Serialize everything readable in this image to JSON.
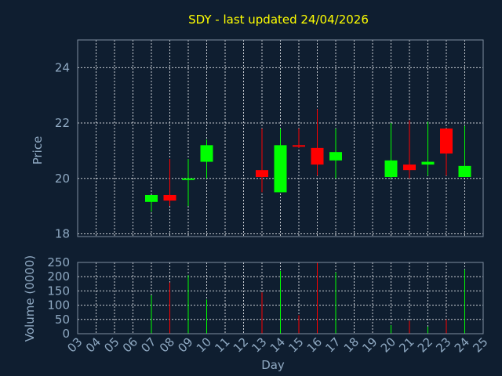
{
  "chart_data": {
    "type": "candlestick",
    "title": "SDY - last updated 24/04/2026",
    "price_panel": {
      "ylabel": "Price",
      "ylim": [
        17.9,
        25.0
      ],
      "yticks": [
        18,
        20,
        22,
        24
      ]
    },
    "volume_panel": {
      "ylabel": "Volume (0000)",
      "ylim": [
        0,
        250
      ],
      "yticks": [
        0,
        50,
        100,
        150,
        200,
        250
      ]
    },
    "xlabel": "Day",
    "xlim": [
      3,
      25
    ],
    "xticks": [
      "03",
      "04",
      "05",
      "06",
      "07",
      "08",
      "09",
      "10",
      "11",
      "12",
      "13",
      "14",
      "15",
      "16",
      "17",
      "18",
      "19",
      "20",
      "21",
      "22",
      "23",
      "24",
      "25"
    ],
    "colors": {
      "up": "#00ff00",
      "down": "#ff0000",
      "title": "#ffff00",
      "axis": "#8fa9c2",
      "background": "#0f1e30"
    },
    "candles": [
      {
        "day": 7,
        "open": 19.15,
        "high": 19.4,
        "low": 18.8,
        "close": 19.4,
        "volume": 135
      },
      {
        "day": 8,
        "open": 19.4,
        "high": 20.7,
        "low": 19.0,
        "close": 19.2,
        "volume": 180
      },
      {
        "day": 9,
        "open": 19.95,
        "high": 20.7,
        "low": 19.0,
        "close": 20.0,
        "volume": 205
      },
      {
        "day": 10,
        "open": 20.6,
        "high": 21.4,
        "low": 20.0,
        "close": 21.2,
        "volume": 120
      },
      {
        "day": 13,
        "open": 20.3,
        "high": 21.8,
        "low": 19.5,
        "close": 20.05,
        "volume": 145
      },
      {
        "day": 14,
        "open": 19.5,
        "high": 21.8,
        "low": 19.5,
        "close": 21.2,
        "volume": 220
      },
      {
        "day": 15,
        "open": 21.2,
        "high": 21.8,
        "low": 21.1,
        "close": 21.15,
        "volume": 65
      },
      {
        "day": 16,
        "open": 21.1,
        "high": 22.5,
        "low": 20.1,
        "close": 20.5,
        "volume": 250
      },
      {
        "day": 17,
        "open": 20.65,
        "high": 21.8,
        "low": 20.0,
        "close": 20.95,
        "volume": 215
      },
      {
        "day": 20,
        "open": 20.05,
        "high": 22.0,
        "low": 20.0,
        "close": 20.65,
        "volume": 30
      },
      {
        "day": 21,
        "open": 20.5,
        "high": 22.1,
        "low": 20.0,
        "close": 20.3,
        "volume": 45
      },
      {
        "day": 22,
        "open": 20.5,
        "high": 22.05,
        "low": 20.1,
        "close": 20.6,
        "volume": 25
      },
      {
        "day": 23,
        "open": 21.8,
        "high": 21.8,
        "low": 20.1,
        "close": 20.9,
        "volume": 50
      },
      {
        "day": 24,
        "open": 20.05,
        "high": 21.9,
        "low": 20.05,
        "close": 20.45,
        "volume": 225
      }
    ]
  }
}
